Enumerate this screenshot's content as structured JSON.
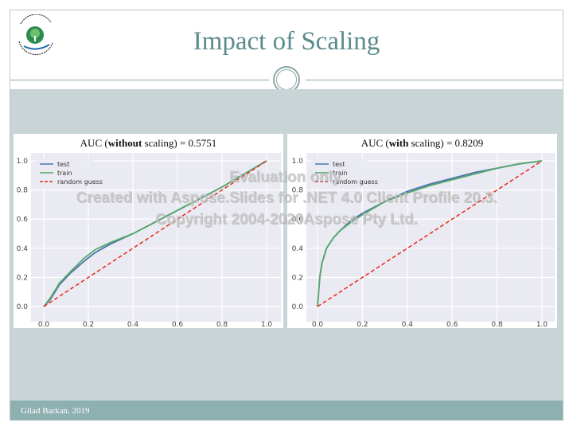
{
  "slide": {
    "title": "Impact of Scaling",
    "footer": "Gilad Barkan. 2019",
    "logo_text_top": "המרכז האקדמי רופין",
    "logo_text_bottom": "Ruppin Academic Center"
  },
  "watermark": {
    "line1": "Evaluation only.",
    "line2": "Created with Aspose.Slides for .NET 4.0 Client Profile 20.3.",
    "line3": "Copyright 2004-2020Aspose Pty Ltd."
  },
  "panels": [
    {
      "title_pre": "AUC (",
      "title_bold": "without",
      "title_post": " scaling) = 0.5751"
    },
    {
      "title_pre": "AUC (",
      "title_bold": "with",
      "title_post": " scaling) = 0.8209"
    }
  ],
  "colors": {
    "test": "#4c72b0",
    "train": "#55a868",
    "random": "#e8291c",
    "plot_bg": "#eaeaf2",
    "accent": "#5b8a8a"
  },
  "chart_data": [
    {
      "type": "line",
      "title": "AUC (without scaling) = 0.5751",
      "xlim": [
        0.0,
        1.0
      ],
      "ylim": [
        0.0,
        1.0
      ],
      "xticks": [
        "0.0",
        "0.2",
        "0.4",
        "0.6",
        "0.8",
        "1.0"
      ],
      "yticks": [
        "0.0",
        "0.2",
        "0.4",
        "0.6",
        "0.8",
        "1.0"
      ],
      "grid": true,
      "legend": "top-left",
      "series": [
        {
          "name": "test",
          "x": [
            0,
            0.03,
            0.07,
            0.12,
            0.18,
            0.23,
            0.3,
            0.4,
            0.5,
            0.6,
            0.7,
            0.8,
            0.9,
            1.0
          ],
          "y": [
            0,
            0.05,
            0.15,
            0.23,
            0.31,
            0.37,
            0.43,
            0.5,
            0.58,
            0.66,
            0.74,
            0.82,
            0.91,
            1.0
          ]
        },
        {
          "name": "train",
          "x": [
            0,
            0.03,
            0.07,
            0.12,
            0.18,
            0.23,
            0.3,
            0.4,
            0.5,
            0.6,
            0.7,
            0.8,
            0.9,
            1.0
          ],
          "y": [
            0,
            0.06,
            0.16,
            0.24,
            0.33,
            0.39,
            0.44,
            0.5,
            0.58,
            0.66,
            0.74,
            0.82,
            0.91,
            1.0
          ]
        },
        {
          "name": "random guess",
          "x": [
            0,
            1
          ],
          "y": [
            0,
            1
          ],
          "dashed": true
        }
      ]
    },
    {
      "type": "line",
      "title": "AUC (with scaling) = 0.8209",
      "xlim": [
        0.0,
        1.0
      ],
      "ylim": [
        0.0,
        1.0
      ],
      "xticks": [
        "0.0",
        "0.2",
        "0.4",
        "0.6",
        "0.8",
        "1.0"
      ],
      "yticks": [
        "0.0",
        "0.2",
        "0.4",
        "0.6",
        "0.8",
        "1.0"
      ],
      "grid": true,
      "legend": "top-left",
      "series": [
        {
          "name": "test",
          "x": [
            0,
            0.005,
            0.01,
            0.02,
            0.04,
            0.07,
            0.1,
            0.15,
            0.2,
            0.3,
            0.4,
            0.5,
            0.6,
            0.7,
            0.8,
            0.9,
            1.0
          ],
          "y": [
            0,
            0.1,
            0.2,
            0.3,
            0.4,
            0.47,
            0.52,
            0.59,
            0.64,
            0.72,
            0.79,
            0.84,
            0.88,
            0.92,
            0.95,
            0.98,
            1.0
          ]
        },
        {
          "name": "train",
          "x": [
            0,
            0.005,
            0.01,
            0.02,
            0.04,
            0.07,
            0.1,
            0.15,
            0.2,
            0.3,
            0.4,
            0.5,
            0.6,
            0.7,
            0.8,
            0.9,
            1.0
          ],
          "y": [
            0,
            0.1,
            0.2,
            0.3,
            0.4,
            0.47,
            0.52,
            0.58,
            0.63,
            0.72,
            0.78,
            0.83,
            0.87,
            0.91,
            0.95,
            0.98,
            1.0
          ]
        },
        {
          "name": "random guess",
          "x": [
            0,
            1
          ],
          "y": [
            0,
            1
          ],
          "dashed": true
        }
      ]
    }
  ]
}
